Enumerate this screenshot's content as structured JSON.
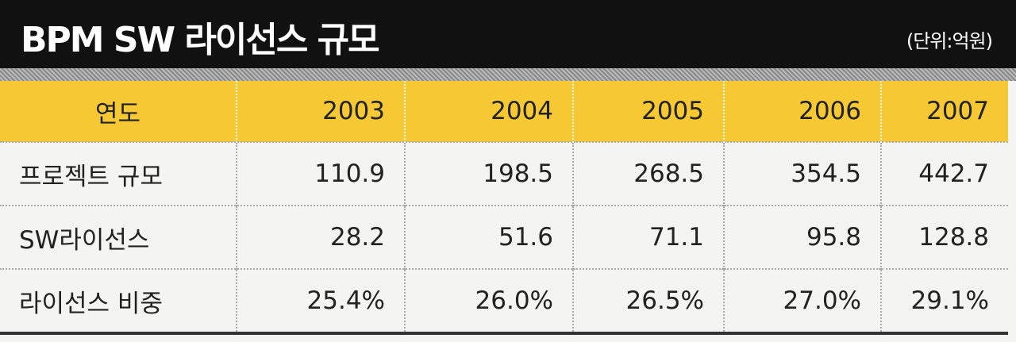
{
  "header": {
    "title": "BPM SW 라이선스 규모",
    "unit": "(단위:억원)"
  },
  "table": {
    "columns": [
      "연도",
      "2003",
      "2004",
      "2005",
      "2006",
      "2007"
    ],
    "rows": [
      [
        "프로젝트 규모",
        "110.9",
        "198.5",
        "268.5",
        "354.5",
        "442.7"
      ],
      [
        "SW라이선스",
        "28.2",
        "51.6",
        "71.1",
        "95.8",
        "128.8"
      ],
      [
        "라이선스 비중",
        "25.4%",
        "26.0%",
        "26.5%",
        "27.0%",
        "29.1%"
      ]
    ]
  }
}
